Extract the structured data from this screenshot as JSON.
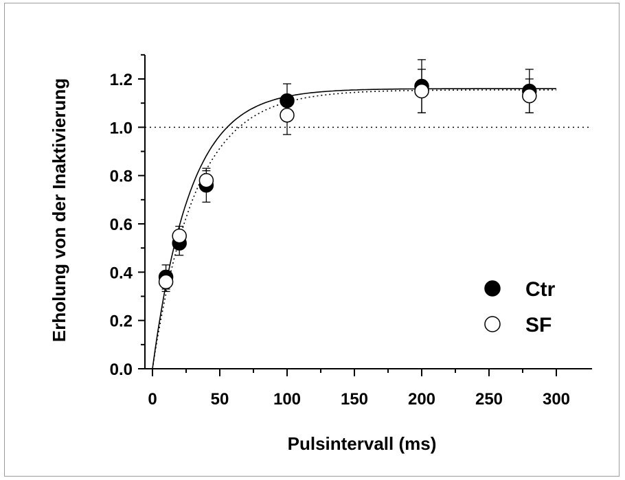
{
  "chart_data": {
    "type": "scatter",
    "xlabel": "Pulsintervall (ms)",
    "ylabel": "Erholung von der Inaktivierung",
    "xlim": [
      0,
      320
    ],
    "ylim": [
      0,
      1.3
    ],
    "x_ticks": [
      0,
      50,
      100,
      150,
      200,
      250,
      300
    ],
    "x_tick_labels": [
      "0",
      "50",
      "100",
      "150",
      "200",
      "250",
      "300"
    ],
    "y_ticks": [
      0.0,
      0.2,
      0.4,
      0.6,
      0.8,
      1.0,
      1.2
    ],
    "y_tick_labels": [
      "0.0",
      "0.2",
      "0.4",
      "0.6",
      "0.8",
      "1.0",
      "1.2"
    ],
    "reference_line_y": 1.0,
    "legend_position": "bottom-right",
    "series": [
      {
        "name": "Ctr",
        "marker": "filled-circle",
        "color": "#000000",
        "fit_line": "solid",
        "x": [
          10,
          20,
          40,
          100,
          200,
          280
        ],
        "y": [
          0.38,
          0.52,
          0.76,
          1.11,
          1.17,
          1.15
        ],
        "error": [
          0.05,
          0.05,
          0.07,
          0.07,
          0.11,
          0.09
        ],
        "fit": {
          "model": "exponential",
          "amplitude": 1.16,
          "tau_ms": 28
        }
      },
      {
        "name": "SF",
        "marker": "open-circle",
        "color": "#000000",
        "fit_line": "dotted",
        "x": [
          10,
          20,
          40,
          100,
          200,
          280
        ],
        "y": [
          0.36,
          0.55,
          0.78,
          1.05,
          1.15,
          1.13
        ],
        "error": [
          0.04,
          0.04,
          0.04,
          0.08,
          0.09,
          0.07
        ],
        "fit": {
          "model": "exponential",
          "amplitude": 1.155,
          "tau_ms": 32
        }
      }
    ]
  }
}
